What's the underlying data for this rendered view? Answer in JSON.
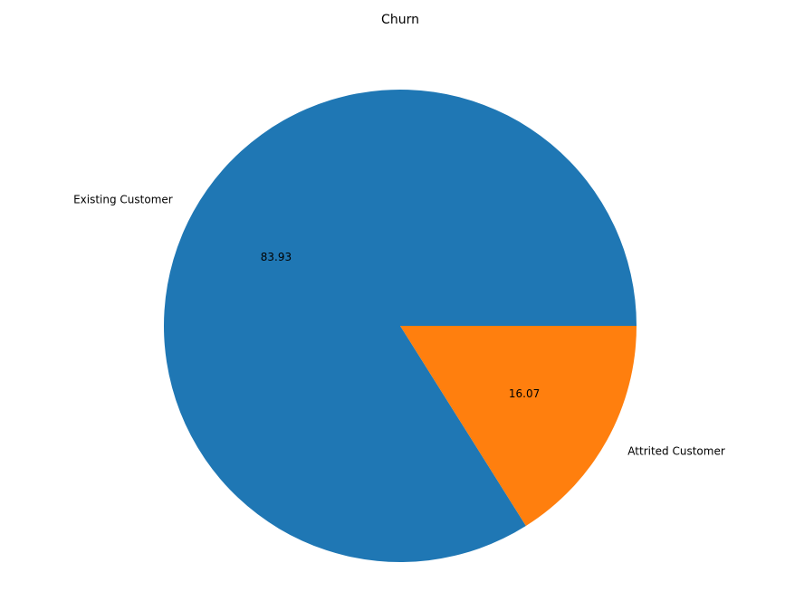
{
  "chart_data": {
    "type": "pie",
    "title": "Churn",
    "categories": [
      "Existing Customer",
      "Attrited Customer"
    ],
    "values": [
      83.93,
      16.07
    ],
    "value_labels": [
      "83.93",
      "16.07"
    ],
    "colors": [
      "#1f77b4",
      "#ff7f0e"
    ],
    "start_angle_deg": 0,
    "direction": "counterclockwise"
  }
}
